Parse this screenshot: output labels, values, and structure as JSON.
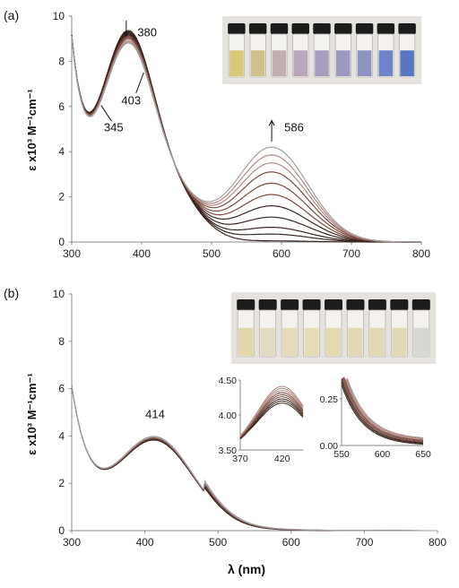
{
  "colors": {
    "curve_dark": "#3a2520",
    "curve_mid": "#7a4a40",
    "curve_light": "#b08a85",
    "curve_grey": "#a0a0a0",
    "axis": "#888888",
    "vial_cap": "#1c1c1c",
    "photo_bg": "#e6e3de"
  },
  "chart_data": [
    {
      "type": "line",
      "panel_label": "(a)",
      "ylabel": "ε x10³ M⁻¹cm⁻¹",
      "xlabel": "",
      "xlim": [
        300,
        800
      ],
      "ylim": [
        0,
        10
      ],
      "xticks": [
        "300",
        "400",
        "500",
        "600",
        "700",
        "800"
      ],
      "yticks": [
        "0",
        "2",
        "4",
        "6",
        "8",
        "10"
      ],
      "isosbestic_points": [
        345,
        403
      ],
      "annotations": [
        {
          "text": "380",
          "x": 380,
          "y": 9.0,
          "arrow": "down"
        },
        {
          "text": "586",
          "x": 586,
          "y": 4.3,
          "arrow": "up"
        },
        {
          "text": "403",
          "x": 403,
          "y": 7.5,
          "arrow": "pointer"
        },
        {
          "text": "345",
          "x": 345,
          "y": 6.1,
          "arrow": "pointer"
        }
      ],
      "series_params": [
        {
          "p380": 9.05,
          "p586": 0.05
        },
        {
          "p380": 9.0,
          "p586": 0.35
        },
        {
          "p380": 8.95,
          "p586": 0.65
        },
        {
          "p380": 8.9,
          "p586": 1.1
        },
        {
          "p380": 8.85,
          "p586": 1.6
        },
        {
          "p380": 8.8,
          "p586": 2.1
        },
        {
          "p380": 8.75,
          "p586": 2.6
        },
        {
          "p380": 8.7,
          "p586": 3.1
        },
        {
          "p380": 8.62,
          "p586": 3.5
        },
        {
          "p380": 8.55,
          "p586": 3.85
        },
        {
          "p380": 8.5,
          "p586": 4.2
        }
      ],
      "photo": {
        "vial_count": 9,
        "vial_colors": [
          "#d6c97a",
          "#cfc090",
          "#c2b0b0",
          "#b7a7b9",
          "#a99dbd",
          "#9d98c0",
          "#8d93c2",
          "#6f84c6",
          "#5877c2"
        ]
      }
    },
    {
      "type": "line",
      "panel_label": "(b)",
      "ylabel": "ε x10³ M⁻¹cm⁻¹",
      "xlabel": "λ (nm)",
      "xlim": [
        300,
        800
      ],
      "ylim": [
        0,
        10
      ],
      "xticks": [
        "300",
        "400",
        "500",
        "600",
        "700",
        "800"
      ],
      "yticks": [
        "0",
        "2",
        "4",
        "6",
        "8",
        "10"
      ],
      "annotations": [
        {
          "text": "414",
          "x": 414,
          "y": 4.15
        }
      ],
      "series_count": 9,
      "inset_left": {
        "xlim": [
          370,
          445
        ],
        "ylim": [
          3.5,
          4.5
        ],
        "xticks": [
          "370",
          "420"
        ],
        "yticks": [
          "3.50",
          "4.00",
          "4.50"
        ]
      },
      "inset_right": {
        "xlim": [
          550,
          650
        ],
        "ylim": [
          0,
          0.35
        ],
        "xticks": [
          "550",
          "600",
          "650"
        ],
        "yticks": [
          "0.00",
          "0.25"
        ]
      },
      "photo": {
        "vial_count": 9,
        "vial_colors": [
          "#e3d7a8",
          "#e1dcc2",
          "#e4dcba",
          "#e6dcb6",
          "#e5dab3",
          "#e3d9b8",
          "#e2d8b4",
          "#e0d8b6",
          "#d6d8d2"
        ]
      }
    }
  ]
}
